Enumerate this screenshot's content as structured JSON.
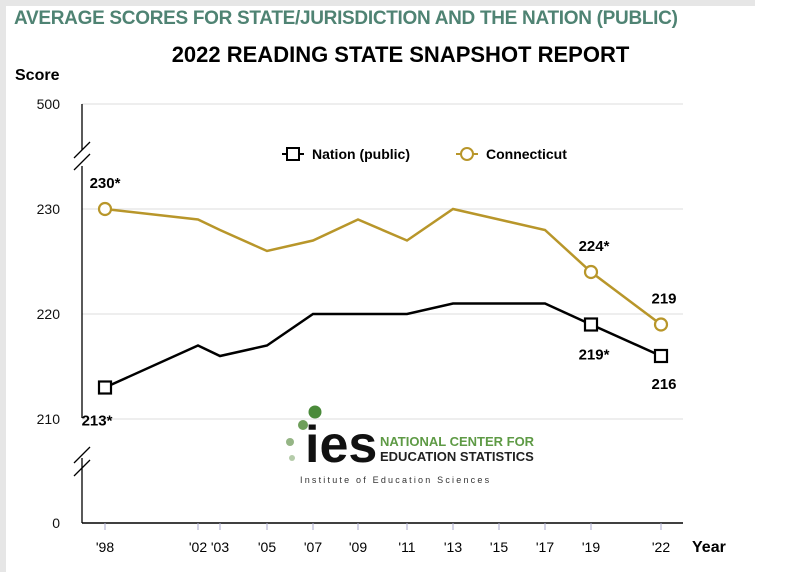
{
  "header": {
    "subtitle": "AVERAGE SCORES FOR STATE/JURISDICTION AND THE NATION (PUBLIC)",
    "title": "2022 READING STATE SNAPSHOT REPORT"
  },
  "logo": {
    "mark": "ies",
    "line1": "NATIONAL CENTER FOR",
    "line2": "EDUCATION STATISTICS",
    "line3": "Institute of Education Sciences"
  },
  "chart_data": {
    "type": "line",
    "ylabel": "Score",
    "xlabel": "Year",
    "y_ticks": [
      "500",
      "230",
      "220",
      "210",
      "0"
    ],
    "y_broken_axis": true,
    "ylim_visible": [
      206,
      236
    ],
    "grid": "horizontal",
    "legend_position": "top-center",
    "x": [
      "'98",
      "'02",
      "'03",
      "'05",
      "'07",
      "'09",
      "'11",
      "'13",
      "'15",
      "'17",
      "'19",
      "'22"
    ],
    "series": [
      {
        "name": "Nation (public)",
        "color": "#000000",
        "marker": "square",
        "values": [
          213,
          217,
          216,
          217,
          220,
          220,
          220,
          221,
          221,
          221,
          219,
          216
        ],
        "labels": {
          "'98": "213*",
          "'19": "219*",
          "'22": "216"
        }
      },
      {
        "name": "Connecticut",
        "color": "#b8962a",
        "marker": "circle",
        "values": [
          230,
          229,
          228,
          226,
          227,
          229,
          227,
          230,
          229,
          228,
          224,
          219
        ],
        "labels": {
          "'98": "230*",
          "'19": "224*",
          "'22": "219"
        }
      }
    ]
  }
}
